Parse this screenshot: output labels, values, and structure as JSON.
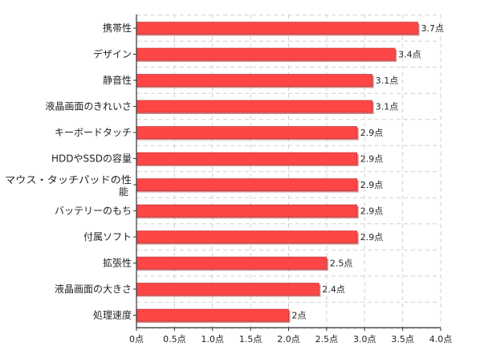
{
  "chart_data": {
    "type": "bar",
    "orientation": "horizontal",
    "categories": [
      "携帯性",
      "デザイン",
      "静音性",
      "液晶画面のきれいさ",
      "キーボードタッチ",
      "HDDやSSDの容量",
      "マウス・タッチパッドの性能",
      "バッテリーのもち",
      "付属ソフト",
      "拡張性",
      "液晶画面の大きさ",
      "処理速度"
    ],
    "values": [
      3.7,
      3.4,
      3.1,
      3.1,
      2.9,
      2.9,
      2.9,
      2.9,
      2.9,
      2.5,
      2.4,
      2.0
    ],
    "value_labels": [
      "3.7点",
      "3.4点",
      "3.1点",
      "3.1点",
      "2.9点",
      "2.9点",
      "2.9点",
      "2.9点",
      "2.9点",
      "2.5点",
      "2.4点",
      "2点"
    ],
    "x_ticks": [
      0,
      0.5,
      1.0,
      1.5,
      2.0,
      2.5,
      3.0,
      3.5,
      4.0
    ],
    "x_tick_labels": [
      "0点",
      "0.5点",
      "1.0点",
      "1.5点",
      "2.0点",
      "2.5点",
      "3.0点",
      "3.5点",
      "4.0点"
    ],
    "xlim": [
      0,
      4.0
    ],
    "grid": "dashed",
    "bar_color": "#ff4646",
    "bar_edge_color": "#b32a2a"
  }
}
